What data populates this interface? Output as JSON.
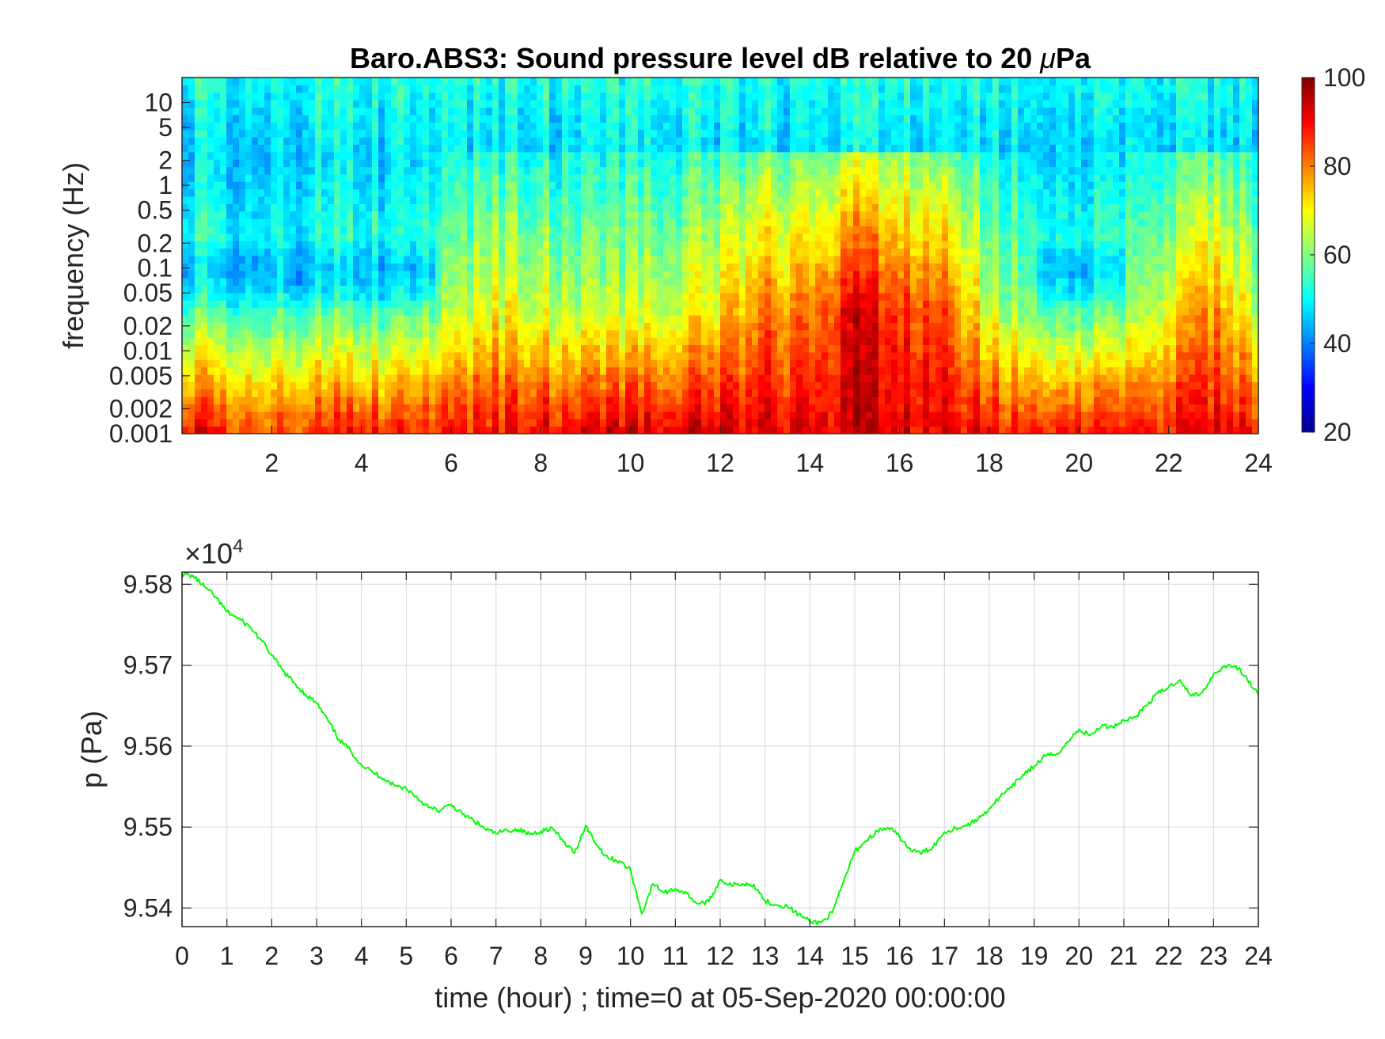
{
  "chart_data": [
    {
      "type": "heatmap",
      "title": "Baro.ABS3: Sound pressure level dB relative to 20 μPa",
      "title_prefix": "Baro.ABS3: Sound pressure level dB relative to 20 ",
      "title_mu": "μ",
      "title_suffix": "Pa",
      "xlabel": "",
      "ylabel": "frequency (Hz)",
      "xlim": [
        0,
        24
      ],
      "x_ticks": [
        "2",
        "4",
        "6",
        "8",
        "10",
        "12",
        "14",
        "16",
        "18",
        "20",
        "22",
        "24"
      ],
      "y_scale": "log",
      "ylim": [
        0.001,
        20
      ],
      "y_ticks": [
        "0.001",
        "0.002",
        "0.005",
        "0.01",
        "0.02",
        "0.05",
        "0.1",
        "0.2",
        "0.5",
        "1",
        "2",
        "5",
        "10"
      ],
      "colormap": "jet",
      "clim": [
        20,
        100
      ],
      "colorbar_ticks": [
        "20",
        "40",
        "60",
        "80",
        "100"
      ],
      "intensity_profile": {
        "x": [
          0,
          1,
          2,
          3,
          4,
          5,
          6,
          7,
          8,
          9,
          10,
          11,
          12,
          13,
          14,
          15,
          16,
          17,
          18,
          19,
          20,
          21,
          22,
          23,
          24
        ],
        "mid_band_level_db": [
          58,
          55,
          57,
          55,
          56,
          55,
          62,
          70,
          66,
          64,
          64,
          66,
          72,
          80,
          80,
          92,
          86,
          84,
          66,
          60,
          56,
          60,
          70,
          80,
          66
        ],
        "low_band_level_db": [
          92,
          88,
          86,
          87,
          88,
          87,
          88,
          90,
          91,
          92,
          92,
          92,
          93,
          92,
          92,
          93,
          92,
          92,
          91,
          90,
          90,
          90,
          90,
          92,
          90
        ]
      }
    },
    {
      "type": "line",
      "xlabel": "time (hour) ; time=0 at 05-Sep-2020 00:00:00",
      "ylabel": "p (Pa)",
      "y_multiplier_prefix": "×10",
      "y_multiplier_exp": "4",
      "xlim": [
        0,
        24
      ],
      "ylim": [
        9.5377,
        9.5815
      ],
      "x_ticks": [
        "0",
        "1",
        "2",
        "3",
        "4",
        "5",
        "6",
        "7",
        "8",
        "9",
        "10",
        "11",
        "12",
        "13",
        "14",
        "15",
        "16",
        "17",
        "18",
        "19",
        "20",
        "21",
        "22",
        "23",
        "24"
      ],
      "y_ticks": [
        "9.54",
        "9.55",
        "9.56",
        "9.57",
        "9.58"
      ],
      "grid": true,
      "line_color": "#00ff00",
      "x": [
        0,
        0.25,
        0.5,
        0.75,
        1,
        1.25,
        1.5,
        1.75,
        2,
        2.25,
        2.5,
        2.75,
        3,
        3.25,
        3.5,
        3.75,
        4,
        4.25,
        4.5,
        4.75,
        5,
        5.25,
        5.5,
        5.75,
        6,
        6.25,
        6.5,
        6.75,
        7,
        7.25,
        7.5,
        7.75,
        8,
        8.25,
        8.5,
        8.75,
        9,
        9.25,
        9.5,
        9.75,
        10,
        10.25,
        10.5,
        10.75,
        11,
        11.25,
        11.5,
        11.75,
        12,
        12.25,
        12.5,
        12.75,
        13,
        13.25,
        13.5,
        13.75,
        14,
        14.25,
        14.5,
        14.75,
        15,
        15.25,
        15.5,
        15.75,
        16,
        16.25,
        16.5,
        16.75,
        17,
        17.25,
        17.5,
        17.75,
        18,
        18.25,
        18.5,
        18.75,
        19,
        19.25,
        19.5,
        19.75,
        20,
        20.25,
        20.5,
        20.75,
        21,
        21.25,
        21.5,
        21.75,
        22,
        22.25,
        22.5,
        22.75,
        23,
        23.25,
        23.5,
        23.75,
        24
      ],
      "y": [
        9.5813,
        9.581,
        9.5797,
        9.5784,
        9.5766,
        9.5758,
        9.5748,
        9.5732,
        9.5712,
        9.5693,
        9.5678,
        9.5664,
        9.5653,
        9.5632,
        9.5608,
        9.5595,
        9.5577,
        9.5568,
        9.556,
        9.5551,
        9.5548,
        9.5536,
        9.5524,
        9.552,
        9.5528,
        9.5516,
        9.5508,
        9.5498,
        9.5492,
        9.5496,
        9.5497,
        9.5491,
        9.5495,
        9.5499,
        9.5482,
        9.5468,
        9.5502,
        9.5478,
        9.5462,
        9.5458,
        9.5447,
        9.5393,
        9.543,
        9.5419,
        9.5424,
        9.5418,
        9.5405,
        9.5408,
        9.5435,
        9.5428,
        9.543,
        9.5429,
        9.5409,
        9.5404,
        9.5402,
        9.5392,
        9.5383,
        9.5382,
        9.5394,
        9.5432,
        9.547,
        9.5483,
        9.5495,
        9.5499,
        9.5488,
        9.5471,
        9.5468,
        9.5476,
        9.5494,
        9.5499,
        9.5502,
        9.551,
        9.5523,
        9.5538,
        9.5549,
        9.5565,
        9.5575,
        9.5588,
        9.559,
        9.5605,
        9.5621,
        9.5613,
        9.5625,
        9.5624,
        9.5632,
        9.5636,
        9.565,
        9.5665,
        9.5673,
        9.5682,
        9.5662,
        9.5666,
        9.5689,
        9.5699,
        9.5699,
        9.5683,
        9.5663
      ]
    }
  ]
}
